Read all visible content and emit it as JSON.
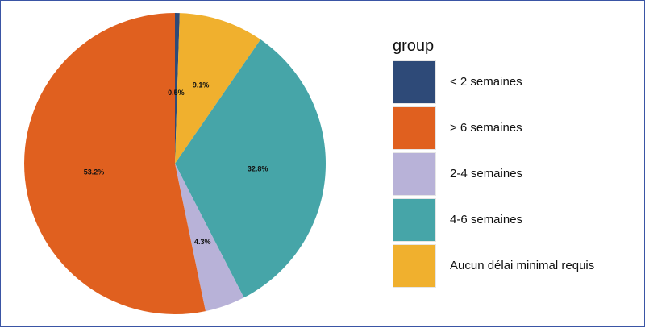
{
  "chart_data": {
    "type": "pie",
    "legend_title": "group",
    "legend_placement": "right",
    "slices": [
      {
        "name": "< 2 semaines",
        "value": 0.5,
        "label": "0.5%",
        "color": "#2e4a78"
      },
      {
        "name": "Aucun délai minimal requis",
        "value": 9.1,
        "label": "9.1%",
        "color": "#f0b02e"
      },
      {
        "name": "4-6 semaines",
        "value": 32.8,
        "label": "32.8%",
        "color": "#46a5a8"
      },
      {
        "name": "2-4 semaines",
        "value": 4.3,
        "label": "4.3%",
        "color": "#b8b2d8"
      },
      {
        "name": "> 6 semaines",
        "value": 53.2,
        "label": "53.2%",
        "color": "#e0601f"
      }
    ],
    "legend_order": [
      "< 2 semaines",
      "> 6 semaines",
      "2-4 semaines",
      "4-6 semaines",
      "Aucun délai minimal requis"
    ]
  }
}
